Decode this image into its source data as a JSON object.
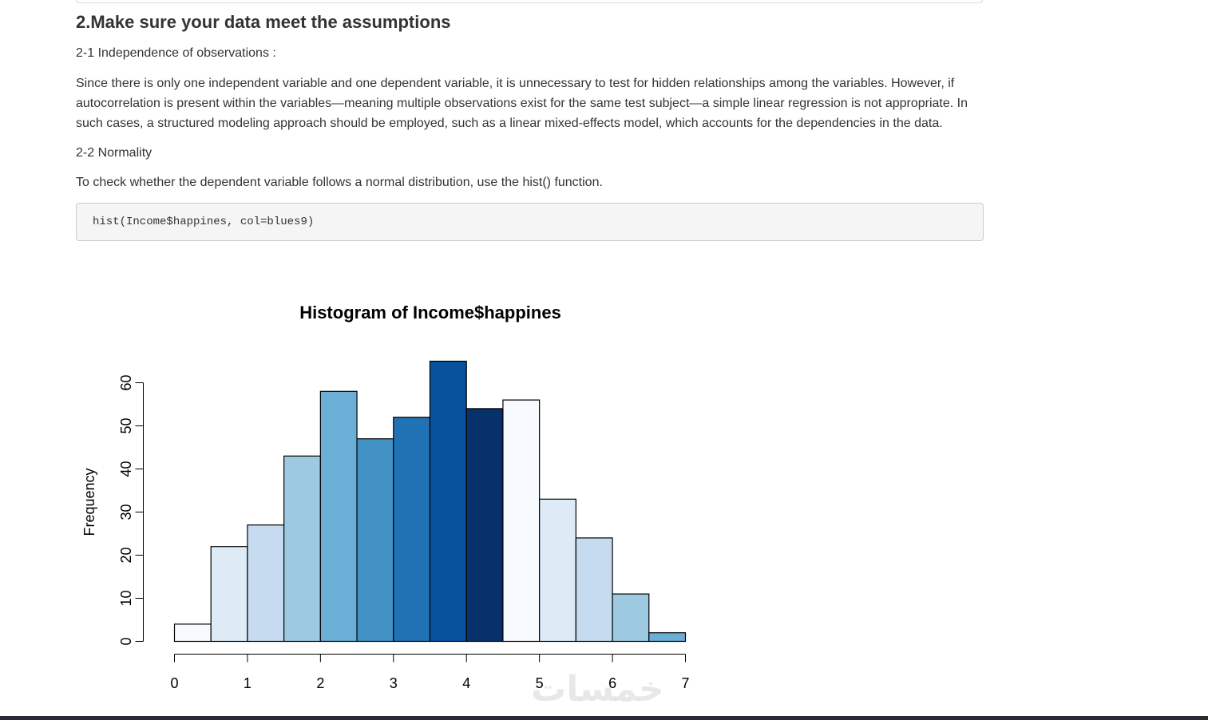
{
  "section": {
    "title": "2.Make sure your data meet the assumptions",
    "subhead_independence": "2-1 Independence of observations :",
    "para_independence": "Since there is only one independent variable and one dependent variable, it is unnecessary to test for hidden relationships among the variables. However, if autocorrelation is present within the variables—meaning multiple observations exist for the same test subject—a simple linear regression is not appropriate. In such cases, a structured modeling approach should be employed, such as a linear mixed-effects model, which accounts for the dependencies in the data.",
    "subhead_normality": "2-2 Normality",
    "para_normality": "To check whether the dependent variable follows a normal distribution, use the hist() function.",
    "code": "hist(Income$happines, col=blues9)"
  },
  "watermark": "خمسات",
  "chart_data": {
    "type": "bar",
    "title": "Histogram of Income$happines",
    "xlabel": "",
    "ylabel": "Frequency",
    "bin_edges": [
      0,
      0.5,
      1,
      1.5,
      2,
      2.5,
      3,
      3.5,
      4,
      4.5,
      5,
      5.5,
      6,
      6.5,
      7
    ],
    "values": [
      4,
      22,
      27,
      43,
      58,
      47,
      52,
      65,
      54,
      56,
      33,
      24,
      11,
      2
    ],
    "colors": [
      "#F7FBFF",
      "#DEEBF7",
      "#C6DBEF",
      "#9ECAE1",
      "#6BAED6",
      "#4292C6",
      "#2171B5",
      "#08519C",
      "#08306B",
      "#F7FBFF",
      "#DEEBF7",
      "#C6DBEF",
      "#9ECAE1",
      "#6BAED6"
    ],
    "xlim": [
      0,
      7
    ],
    "ylim": [
      0,
      65
    ],
    "xticks": [
      0,
      1,
      2,
      3,
      4,
      5,
      6,
      7
    ],
    "yticks": [
      0,
      10,
      20,
      30,
      40,
      50,
      60
    ],
    "grid": false,
    "legend": "none"
  }
}
